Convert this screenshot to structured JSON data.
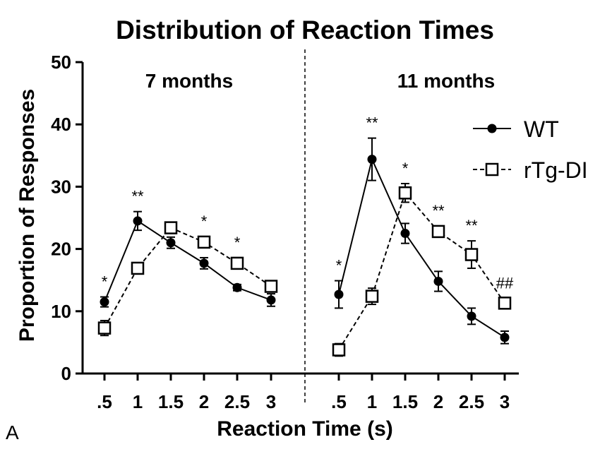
{
  "chart_data": {
    "type": "line",
    "title": "Distribution of Reaction Times",
    "xlabel": "Reaction Time (s)",
    "ylabel": "Proportion of Responses",
    "ylim": [
      0,
      50
    ],
    "yticks": [
      "0",
      "10",
      "20",
      "30",
      "40",
      "50"
    ],
    "panel_letter": "A",
    "legend_position": "right",
    "grid": false,
    "panels": [
      {
        "label": "7 months",
        "categories": [
          ".5",
          "1",
          "1.5",
          "2",
          "2.5",
          "3"
        ],
        "series": [
          {
            "name": "WT",
            "marker": "filled-circle",
            "line": "solid",
            "values": [
              11.5,
              24.5,
              21.0,
              17.7,
              13.8,
              11.8
            ],
            "errors": [
              0.8,
              1.5,
              0.9,
              0.9,
              0.5,
              1.0
            ]
          },
          {
            "name": "rTg-DI",
            "marker": "open-square",
            "line": "dashed",
            "values": [
              7.3,
              16.9,
              23.4,
              21.1,
              17.7,
              14.0
            ],
            "errors": [
              1.2,
              0.8,
              0.9,
              0.9,
              0.9,
              0.9
            ]
          }
        ],
        "annotations": [
          "*",
          "**",
          "",
          "*",
          "*",
          ""
        ]
      },
      {
        "label": "11 months",
        "categories": [
          ".5",
          "1",
          "1.5",
          "2",
          "2.5",
          "3"
        ],
        "series": [
          {
            "name": "WT",
            "marker": "filled-circle",
            "line": "solid",
            "values": [
              12.7,
              34.4,
              22.5,
              14.8,
              9.2,
              5.8
            ],
            "errors": [
              2.2,
              3.4,
              1.6,
              1.6,
              1.3,
              1.0
            ]
          },
          {
            "name": "rTg-DI",
            "marker": "open-square",
            "line": "dashed",
            "values": [
              3.8,
              12.4,
              29.0,
              22.8,
              19.1,
              11.3
            ],
            "errors": [
              1.0,
              1.3,
              1.5,
              0.9,
              2.2,
              0.8
            ]
          }
        ],
        "annotations": [
          "*",
          "**",
          "*",
          "**",
          "**",
          "##"
        ]
      }
    ]
  }
}
